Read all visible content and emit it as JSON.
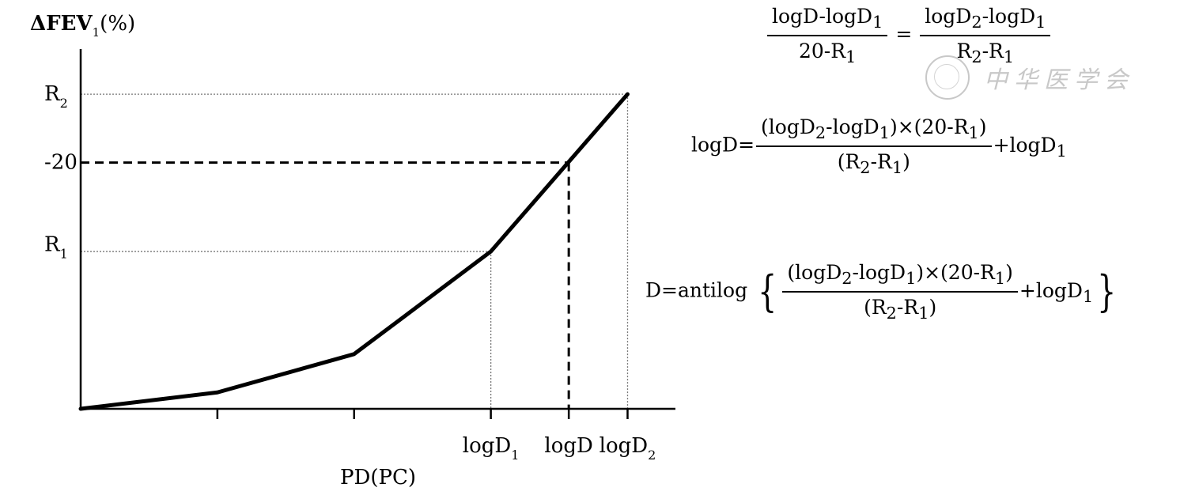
{
  "chart_data": {
    "type": "line",
    "title": "",
    "y_title": "ΔFEV",
    "y_title_sub": "1",
    "y_title_unit": "(%)",
    "xlabel": "PD(PC)",
    "x_ticks": [
      {
        "x": 1,
        "label": "",
        "sub": ""
      },
      {
        "x": 2,
        "label": "",
        "sub": ""
      },
      {
        "x": 3,
        "label": "logD",
        "sub": "1"
      },
      {
        "x": 3.57,
        "label": "logD",
        "sub": ""
      },
      {
        "x": 4,
        "label": "logD",
        "sub": "2"
      }
    ],
    "y_ticks": [
      {
        "y": 23,
        "label": "R",
        "sub": "2"
      },
      {
        "y": 18,
        "label": "-20",
        "sub": ""
      },
      {
        "y": 12,
        "label": "R",
        "sub": "1"
      }
    ],
    "series": [
      {
        "x": [
          0,
          1,
          2,
          3,
          4
        ],
        "y": [
          0,
          1.2,
          4,
          11.5,
          23
        ]
      }
    ],
    "dotted_reference_lines": [
      {
        "from": [
          0,
          23
        ],
        "to": [
          4,
          23
        ],
        "vertical_to": 4
      },
      {
        "from": [
          0,
          11.5
        ],
        "to": [
          3,
          11.5
        ],
        "vertical_to": 3
      }
    ],
    "dashed_reference_lines": [
      {
        "from": [
          0,
          18
        ],
        "to": [
          3.57,
          18
        ],
        "vertical_to": 3.57
      }
    ],
    "xlim": [
      0,
      4.35
    ],
    "ylim": [
      0,
      26.3
    ],
    "grid": false
  },
  "formulas": {
    "f1": {
      "num_a": "logD-logD",
      "num_a_sub": "1",
      "den_a": "20-R",
      "den_a_sub": "1",
      "eq": "=",
      "num_b": "logD",
      "num_b_sub1": "2",
      "num_b_mid": "-logD",
      "num_b_sub2": "1",
      "den_b": "R",
      "den_b_sub1": "2",
      "den_b_mid": "-R",
      "den_b_sub2": "1"
    },
    "f2": {
      "lhs": "logD=",
      "num_p1": "(logD",
      "num_s1": "2",
      "num_p2": "-logD",
      "num_s2": "1",
      "num_p3": ")×(20-R",
      "num_s3": "1",
      "num_p4": ")",
      "den_p1": "(R",
      "den_s1": "2",
      "den_p2": "-R",
      "den_s2": "1",
      "den_p3": ")",
      "tail": "+logD",
      "tail_sub": "1"
    },
    "f3": {
      "lhs": "D=antilog",
      "brace_open": "{",
      "num_p1": "(logD",
      "num_s1": "2",
      "num_p2": "-logD",
      "num_s2": "1",
      "num_p3": ")×(20-R",
      "num_s3": "1",
      "num_p4": ")",
      "den_p1": "(R",
      "den_s1": "2",
      "den_p2": "-R",
      "den_s2": "1",
      "den_p3": ")",
      "tail": "+logD",
      "tail_sub": "1",
      "brace_close": "}"
    }
  },
  "watermark": {
    "text": "中华医学会"
  }
}
